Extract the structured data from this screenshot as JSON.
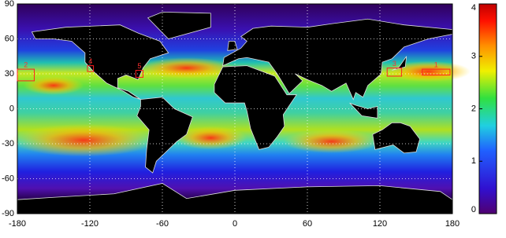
{
  "x_axis": {
    "lim": [
      -180,
      180
    ],
    "ticks": [
      -180,
      -120,
      -60,
      0,
      60,
      120,
      180
    ]
  },
  "y_axis": {
    "lim": [
      -90,
      90
    ],
    "ticks": [
      90,
      60,
      30,
      0,
      -30,
      -60,
      -90
    ]
  },
  "colorbar": {
    "lim": [
      0,
      4
    ],
    "ticks": [
      0,
      1,
      2,
      3,
      4
    ]
  },
  "regions": [
    {
      "label": "2",
      "lon": [
        -180,
        -166
      ],
      "lat": [
        24,
        34
      ]
    },
    {
      "label": "4",
      "lon": [
        -122,
        -117
      ],
      "lat": [
        32,
        37
      ]
    },
    {
      "label": "5",
      "lon": [
        -82,
        -76
      ],
      "lat": [
        27,
        33
      ]
    },
    {
      "label": "3",
      "lon": [
        126,
        138
      ],
      "lat": [
        28,
        35
      ]
    },
    {
      "label": "1",
      "lon": [
        155,
        178
      ],
      "lat": [
        29,
        34
      ]
    }
  ]
}
